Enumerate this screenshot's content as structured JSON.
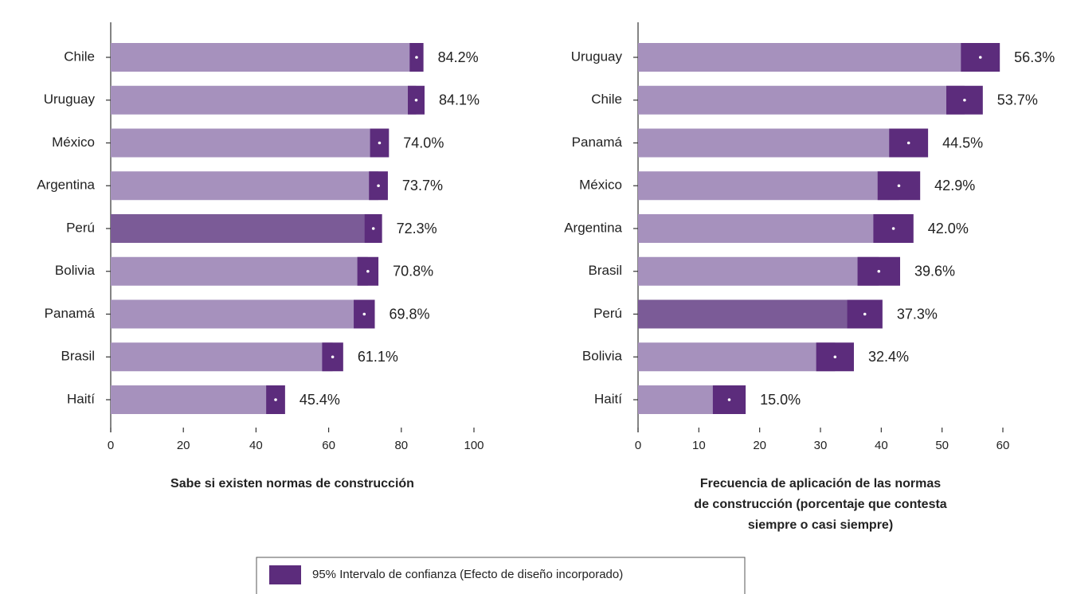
{
  "chart_data": [
    {
      "type": "bar",
      "orientation": "horizontal",
      "categories": [
        "Chile",
        "Uruguay",
        "México",
        "Argentina",
        "Perú",
        "Bolivia",
        "Panamá",
        "Brasil",
        "Haití"
      ],
      "values": [
        84.2,
        84.1,
        74.0,
        73.7,
        72.3,
        70.8,
        69.8,
        61.1,
        45.4
      ],
      "value_labels": [
        "84.2%",
        "84.1%",
        "74.0%",
        "73.7%",
        "72.3%",
        "70.8%",
        "69.8%",
        "61.1%",
        "45.4%"
      ],
      "errors": [
        1.9,
        2.3,
        2.6,
        2.6,
        2.4,
        2.9,
        2.9,
        2.9,
        2.6
      ],
      "colors": [
        "#a691bd",
        "#a691bd",
        "#a691bd",
        "#a691bd",
        "#7b5b97",
        "#a691bd",
        "#a691bd",
        "#a691bd",
        "#a691bd"
      ],
      "error_color": "#5c2c7c",
      "xlim": [
        0,
        100
      ],
      "xticks": [
        0,
        20,
        40,
        60,
        80,
        100
      ],
      "xlabel": [
        "Sabe si existen normas de construcción"
      ]
    },
    {
      "type": "bar",
      "orientation": "horizontal",
      "categories": [
        "Uruguay",
        "Chile",
        "Panamá",
        "México",
        "Argentina",
        "Brasil",
        "Perú",
        "Bolivia",
        "Haití"
      ],
      "values": [
        56.3,
        53.7,
        44.5,
        42.9,
        42.0,
        39.6,
        37.3,
        32.4,
        15.0
      ],
      "value_labels": [
        "56.3%",
        "53.7%",
        "44.5%",
        "42.9%",
        "42.0%",
        "39.6%",
        "37.3%",
        "32.4%",
        "15.0%"
      ],
      "errors": [
        3.2,
        3.0,
        3.2,
        3.5,
        3.3,
        3.5,
        2.9,
        3.1,
        2.7
      ],
      "colors": [
        "#a691bd",
        "#a691bd",
        "#a691bd",
        "#a691bd",
        "#a691bd",
        "#a691bd",
        "#7b5b97",
        "#a691bd",
        "#a691bd"
      ],
      "error_color": "#5c2c7c",
      "xlim": [
        0,
        60
      ],
      "xticks": [
        0,
        10,
        20,
        30,
        40,
        50,
        60
      ],
      "xlabel": [
        "Frecuencia de aplicación de las normas",
        "de construcción (porcentaje que contesta",
        "siempre o casi siempre)"
      ]
    }
  ],
  "legend": {
    "label": "95% Intervalo de confianza (Efecto de diseño incorporado)",
    "color": "#5c2c7c",
    "position": "bottom"
  }
}
